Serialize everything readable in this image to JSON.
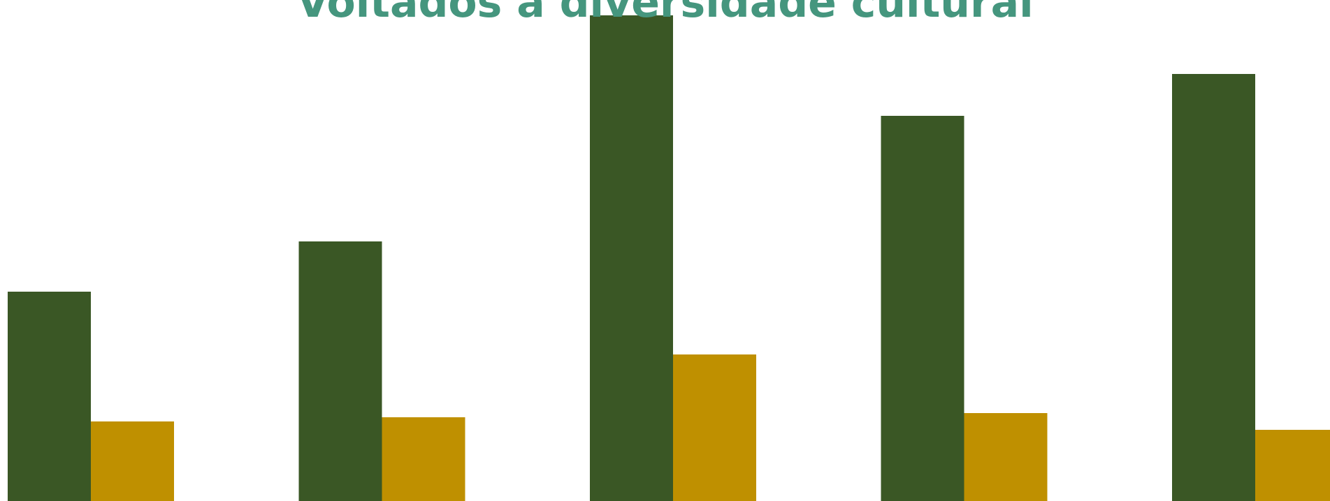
{
  "chart_data": {
    "type": "bar",
    "title": "Voltados à diversidade cultural",
    "categories": [
      "",
      "",
      "",
      "",
      ""
    ],
    "series": [
      {
        "color": "#3a5725",
        "values": [
          50,
          62,
          116,
          92,
          102
        ]
      },
      {
        "color": "#bf9000",
        "values": [
          19,
          20,
          35,
          21,
          17
        ]
      }
    ],
    "ylim": [
      0,
      118
    ],
    "grid": false,
    "legend": "none"
  },
  "colors": {
    "title": "#45967e",
    "background": "#ffffff"
  }
}
